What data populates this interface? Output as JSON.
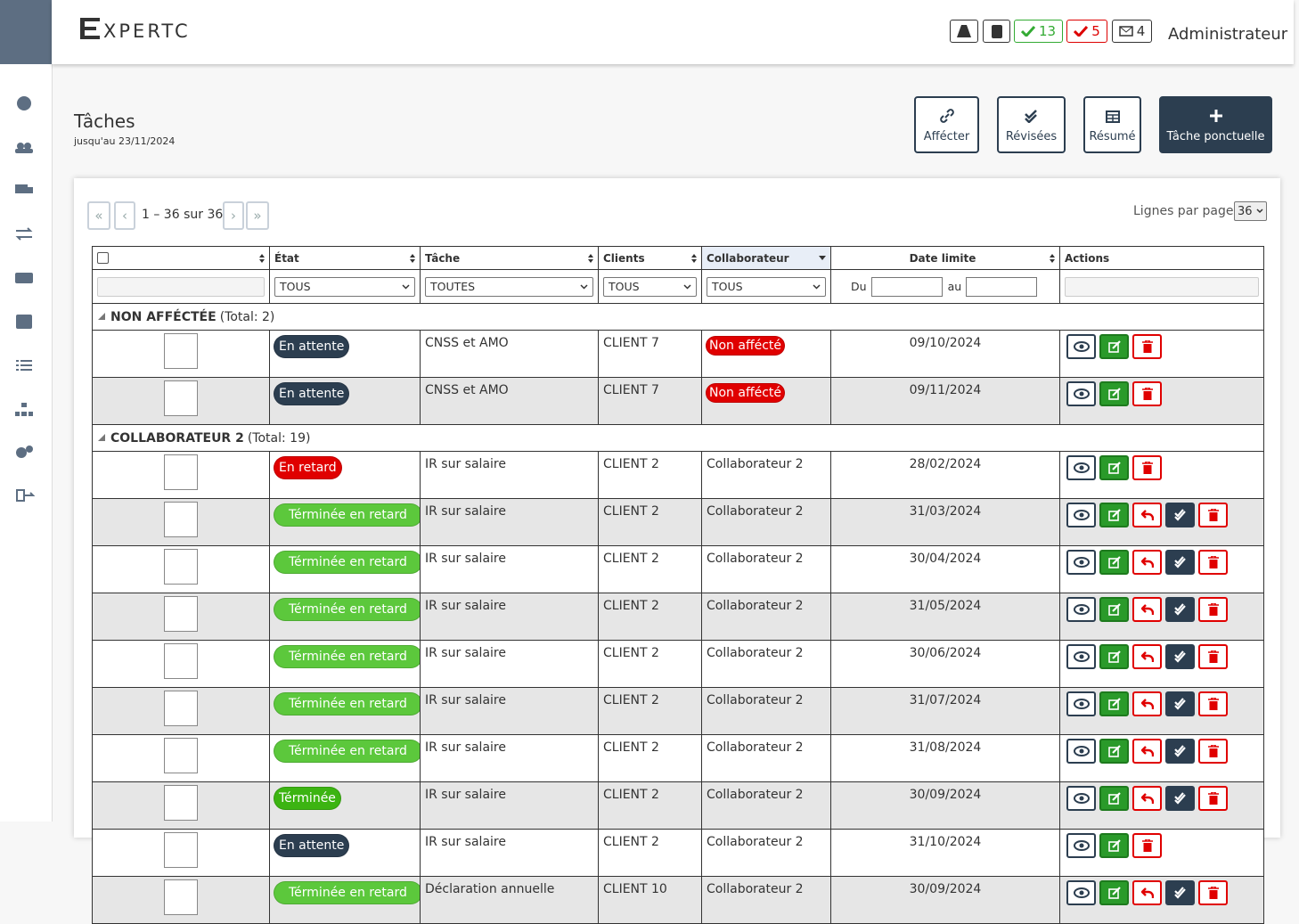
{
  "header": {
    "logo": "XPERTC",
    "badges": [
      "13",
      "5",
      "4"
    ],
    "user": "Administrateur"
  },
  "page": {
    "title": "Tâches",
    "subtitle": "jusqu'au 23/11/2024",
    "buttons": [
      "Affécter",
      "Révisées",
      "Résumé",
      "Tâche ponctuelle"
    ]
  },
  "pager": {
    "first": "«",
    "prev": "‹",
    "range": "1 – 36 sur 36",
    "next": "›",
    "last": "»",
    "rows_label": "Lignes par page:",
    "rows_value": "36"
  },
  "table": {
    "columns": [
      "État",
      "Tâche",
      "Clients",
      "Collaborateur",
      "Date limite",
      "Actions"
    ],
    "filters": [
      "TOUS",
      "TOUTES",
      "TOUS",
      "TOUS"
    ],
    "date_from": "Du",
    "date_to": "au",
    "groups": [
      {
        "label": "NON AFFÉCTÉE",
        "total": "(Total: 2)",
        "rows": [
          {
            "state": "En attente",
            "state_color": "#2c3e50",
            "task": "CNSS et AMO",
            "client": "CLIENT 7",
            "collaborator": "Non affécté",
            "collaborator_color": "#e00000",
            "date": "09/10/2024",
            "reviewable": false
          },
          {
            "state": "En attente",
            "state_color": "#2c3e50",
            "task": "CNSS et AMO",
            "client": "CLIENT 7",
            "collaborator": "Non affécté",
            "collaborator_color": "#e00000",
            "date": "09/11/2024",
            "reviewable": false
          }
        ]
      },
      {
        "label": "COLLABORATEUR 2",
        "total": "(Total: 19)",
        "rows": [
          {
            "state": "En retard",
            "state_color": "#e00000",
            "task": "IR sur salaire",
            "client": "CLIENT 2",
            "collaborator": "Collaborateur 2",
            "date": "28/02/2024",
            "reviewable": false
          },
          {
            "state": "Términée en retard",
            "state_color": "#5cc83c",
            "task": "IR sur salaire",
            "client": "CLIENT 2",
            "collaborator": "Collaborateur 2",
            "date": "31/03/2024",
            "reviewable": true
          },
          {
            "state": "Términée en retard",
            "state_color": "#5cc83c",
            "task": "IR sur salaire",
            "client": "CLIENT 2",
            "collaborator": "Collaborateur 2",
            "date": "30/04/2024",
            "reviewable": true
          },
          {
            "state": "Términée en retard",
            "state_color": "#5cc83c",
            "task": "IR sur salaire",
            "client": "CLIENT 2",
            "collaborator": "Collaborateur 2",
            "date": "31/05/2024",
            "reviewable": true
          },
          {
            "state": "Términée en retard",
            "state_color": "#5cc83c",
            "task": "IR sur salaire",
            "client": "CLIENT 2",
            "collaborator": "Collaborateur 2",
            "date": "30/06/2024",
            "reviewable": true
          },
          {
            "state": "Términée en retard",
            "state_color": "#5cc83c",
            "task": "IR sur salaire",
            "client": "CLIENT 2",
            "collaborator": "Collaborateur 2",
            "date": "31/07/2024",
            "reviewable": true
          },
          {
            "state": "Términée en retard",
            "state_color": "#5cc83c",
            "task": "IR sur salaire",
            "client": "CLIENT 2",
            "collaborator": "Collaborateur 2",
            "date": "31/08/2024",
            "reviewable": true
          },
          {
            "state": "Términée",
            "state_color": "#3cb412",
            "task": "IR sur salaire",
            "client": "CLIENT 2",
            "collaborator": "Collaborateur 2",
            "date": "30/09/2024",
            "reviewable": true
          },
          {
            "state": "En attente",
            "state_color": "#2c3e50",
            "task": "IR sur salaire",
            "client": "CLIENT 2",
            "collaborator": "Collaborateur 2",
            "date": "31/10/2024",
            "reviewable": false
          },
          {
            "state": "Términée en retard",
            "state_color": "#5cc83c",
            "task": "Déclaration annuelle",
            "client": "CLIENT 10",
            "collaborator": "Collaborateur 2",
            "date": "30/09/2024",
            "reviewable": true
          }
        ]
      }
    ]
  }
}
